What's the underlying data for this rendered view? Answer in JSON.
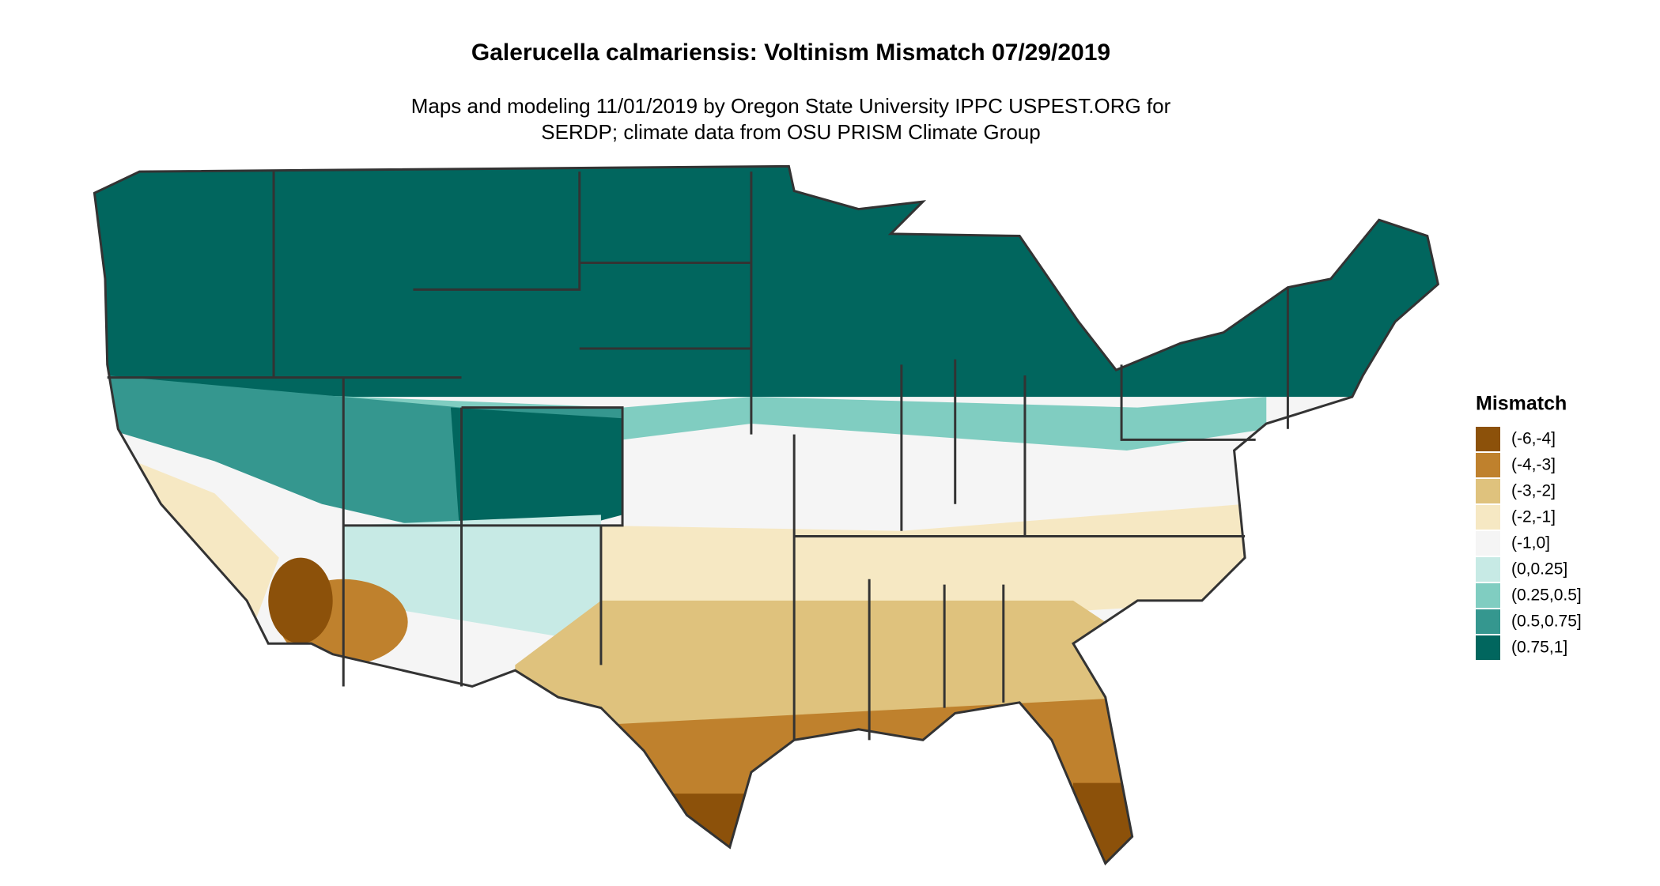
{
  "title": "Galerucella calmariensis: Voltinism Mismatch 07/29/2019",
  "subtitle_lines": [
    "Maps and modeling 11/01/2019 by Oregon State University IPPC USPEST.ORG for",
    "SERDP; climate data from OSU PRISM Climate Group"
  ],
  "legend": {
    "title": "Mismatch",
    "items": [
      {
        "label": "(-6,-4]",
        "color": "#8c510a"
      },
      {
        "label": "(-4,-3]",
        "color": "#bf812d"
      },
      {
        "label": "(-3,-2]",
        "color": "#dfc27d"
      },
      {
        "label": "(-2,-1]",
        "color": "#f6e8c3"
      },
      {
        "label": "(-1,0]",
        "color": "#f5f5f5"
      },
      {
        "label": "(0,0.25]",
        "color": "#c7eae5"
      },
      {
        "label": "(0.25,0.5]",
        "color": "#80cdc1"
      },
      {
        "label": "(0.5,0.75]",
        "color": "#35978f"
      },
      {
        "label": "(0.75,1]",
        "color": "#01665e"
      }
    ]
  }
}
